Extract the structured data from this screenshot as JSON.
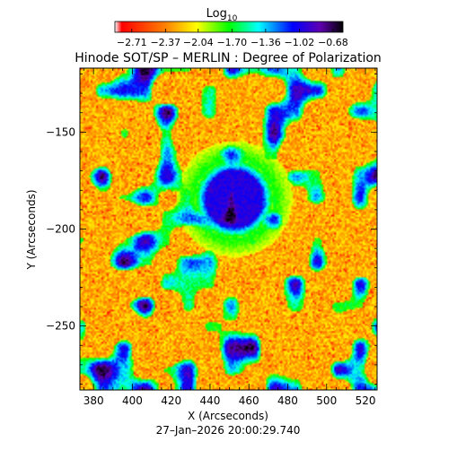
{
  "chart_data": {
    "type": "heatmap",
    "title": "Hinode SOT/SP – MERLIN : Degree of Polarization",
    "xlabel": "X (Arcseconds)",
    "ylabel": "Y (Arcseconds)",
    "xlim": [
      373,
      526
    ],
    "ylim": [
      -283,
      -117
    ],
    "xticks": [
      380,
      400,
      420,
      440,
      460,
      480,
      500,
      520
    ],
    "yticks": [
      -250,
      -200,
      -150
    ],
    "colorbar": {
      "title": "Log",
      "title_subscript": "10",
      "range": [
        -2.88,
        -0.58
      ],
      "ticks": [
        -2.71,
        -2.37,
        -2.04,
        -1.7,
        -1.36,
        -1.02,
        -0.68
      ],
      "tick_labels": [
        "−2.71",
        "−2.37",
        "−2.04",
        "−1.70",
        "−1.36",
        "−1.02",
        "−0.68"
      ],
      "colormap": [
        "#ffffff",
        "#ff0000",
        "#ff7f00",
        "#ffff00",
        "#00ff00",
        "#00ffff",
        "#0000ff",
        "#5a00b4",
        "#000000"
      ]
    },
    "features": [
      {
        "kind": "sunspot",
        "x": 452,
        "y": -184,
        "radius": 15,
        "level": -0.9
      }
    ],
    "timestamp": "27–Jan–2026 20:00:29.740"
  }
}
